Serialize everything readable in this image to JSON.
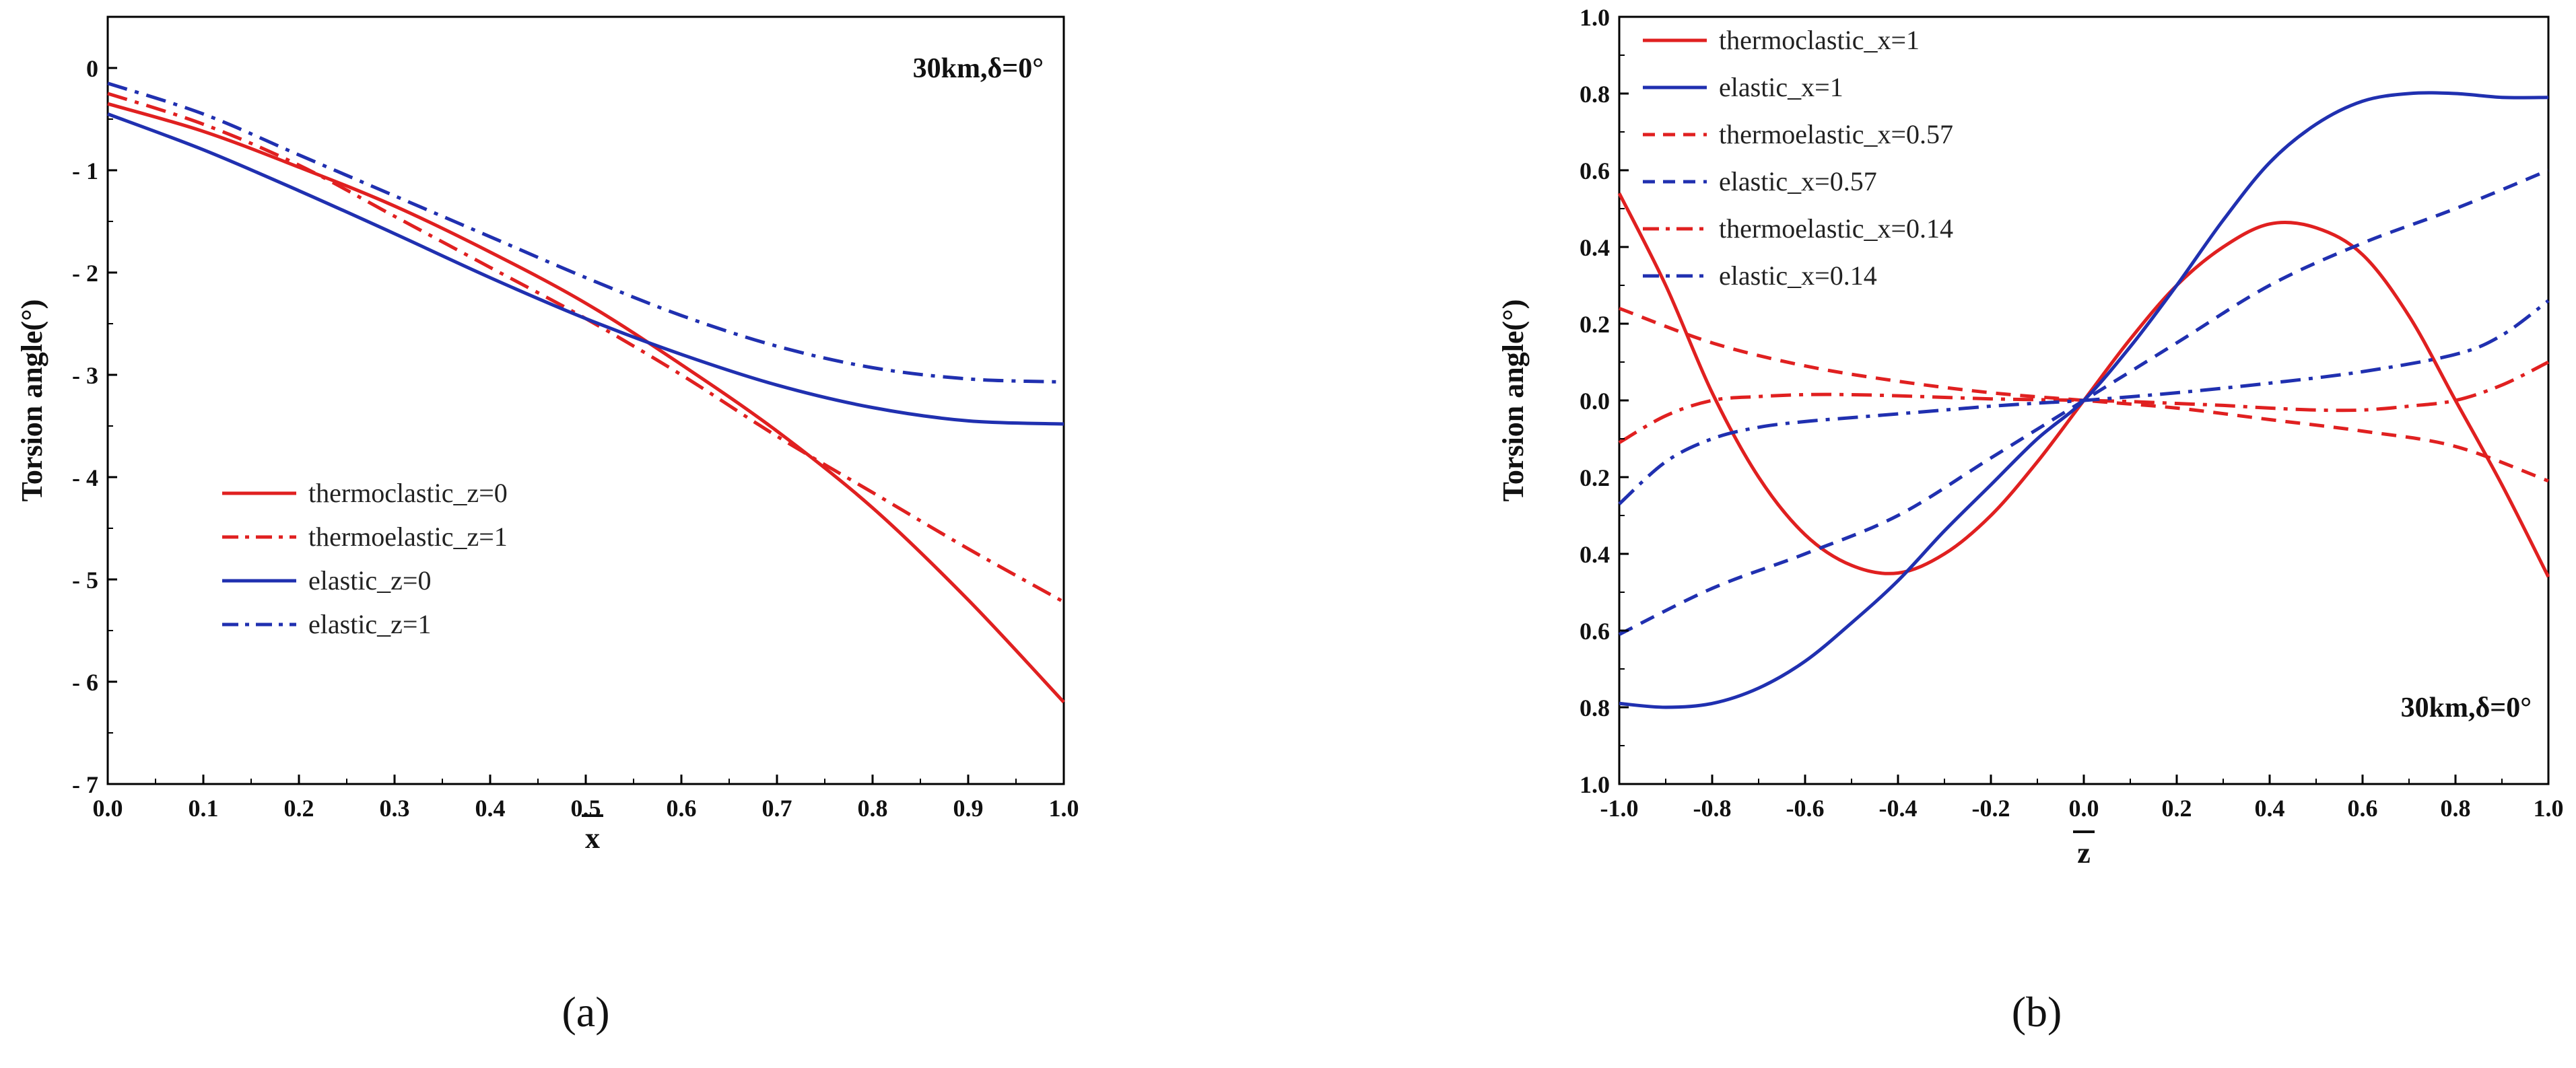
{
  "chart_data": [
    {
      "type": "line",
      "panel_label": "(a)",
      "xlabel": "x",
      "ylabel": "Torsion angle(°)",
      "annotation": "30km,δ=0°",
      "xlim": [
        0,
        1
      ],
      "ylim": [
        -7,
        0.5
      ],
      "xticks": [
        "0.0",
        "0.1",
        "0.2",
        "0.3",
        "0.4",
        "0.5",
        "0.6",
        "0.7",
        "0.8",
        "0.9",
        "1.0"
      ],
      "yticks": [
        "0",
        "- 1",
        "- 2",
        "- 3",
        "- 4",
        "- 5",
        "- 6",
        "- 7"
      ],
      "ytick_values": [
        0,
        -1,
        -2,
        -3,
        -4,
        -5,
        -6,
        -7
      ],
      "xtick_values": [
        0,
        0.1,
        0.2,
        0.3,
        0.4,
        0.5,
        0.6,
        0.7,
        0.8,
        0.9,
        1.0
      ],
      "legend_position": "center-left",
      "series": [
        {
          "name": "thermoclastic_z=0",
          "color": "#e02020",
          "dash": "solid",
          "x": [
            0,
            0.1,
            0.2,
            0.3,
            0.4,
            0.5,
            0.6,
            0.7,
            0.8,
            0.9,
            1.0
          ],
          "y": [
            -0.35,
            -0.62,
            -0.97,
            -1.35,
            -1.8,
            -2.3,
            -2.9,
            -3.55,
            -4.3,
            -5.2,
            -6.2
          ]
        },
        {
          "name": "thermoelastic_z=1",
          "color": "#e02020",
          "dash": "dashdot",
          "x": [
            0,
            0.1,
            0.2,
            0.3,
            0.4,
            0.5,
            0.6,
            0.7,
            0.8,
            0.9,
            1.0
          ],
          "y": [
            -0.25,
            -0.55,
            -0.95,
            -1.45,
            -1.95,
            -2.45,
            -3.0,
            -3.6,
            -4.15,
            -4.7,
            -5.22
          ]
        },
        {
          "name": "elastic_z=0",
          "color": "#2030b0",
          "dash": "solid",
          "x": [
            0,
            0.1,
            0.2,
            0.3,
            0.4,
            0.5,
            0.6,
            0.7,
            0.8,
            0.9,
            1.0
          ],
          "y": [
            -0.45,
            -0.8,
            -1.2,
            -1.62,
            -2.05,
            -2.45,
            -2.8,
            -3.1,
            -3.32,
            -3.45,
            -3.48
          ]
        },
        {
          "name": "elastic_z=1",
          "color": "#2030b0",
          "dash": "dashdot",
          "x": [
            0,
            0.1,
            0.2,
            0.3,
            0.4,
            0.5,
            0.6,
            0.7,
            0.8,
            0.9,
            1.0
          ],
          "y": [
            -0.15,
            -0.45,
            -0.85,
            -1.25,
            -1.65,
            -2.05,
            -2.42,
            -2.72,
            -2.93,
            -3.04,
            -3.07
          ]
        }
      ]
    },
    {
      "type": "line",
      "panel_label": "(b)",
      "xlabel": "z",
      "ylabel": "Torsion angle(°)",
      "annotation": "30km,δ=0°",
      "xlim": [
        -1,
        1
      ],
      "ylim": [
        -1,
        1
      ],
      "xticks": [
        "-1.0",
        "-0.8",
        "-0.6",
        "-0.4",
        "-0.2",
        "0.0",
        "0.2",
        "0.4",
        "0.6",
        "0.8",
        "1.0"
      ],
      "xtick_values": [
        -1,
        -0.8,
        -0.6,
        -0.4,
        -0.2,
        0,
        0.2,
        0.4,
        0.6,
        0.8,
        1
      ],
      "yticks": [
        "1.0",
        "0.8",
        "0.6",
        "0.4",
        "0.2",
        "0.0",
        "0.2",
        "0.4",
        "0.6",
        "0.8",
        "1.0"
      ],
      "ytick_values": [
        1,
        0.8,
        0.6,
        0.4,
        0.2,
        0,
        -0.2,
        -0.4,
        -0.6,
        -0.8,
        -1
      ],
      "legend_position": "top-left",
      "series": [
        {
          "name": "thermoclastic_x=1",
          "color": "#e02020",
          "dash": "solid",
          "x": [
            -1,
            -0.9,
            -0.8,
            -0.7,
            -0.6,
            -0.5,
            -0.4,
            -0.3,
            -0.2,
            -0.1,
            0,
            0.1,
            0.2,
            0.3,
            0.4,
            0.5,
            0.6,
            0.7,
            0.8,
            0.9,
            1
          ],
          "y": [
            0.54,
            0.3,
            0.02,
            -0.2,
            -0.35,
            -0.43,
            -0.45,
            -0.4,
            -0.3,
            -0.16,
            0,
            0.16,
            0.3,
            0.4,
            0.46,
            0.45,
            0.38,
            0.22,
            0.0,
            -0.22,
            -0.46
          ]
        },
        {
          "name": "elastic_x=1",
          "color": "#2030b0",
          "dash": "solid",
          "x": [
            -1,
            -0.9,
            -0.8,
            -0.7,
            -0.6,
            -0.5,
            -0.4,
            -0.3,
            -0.2,
            -0.1,
            0,
            0.1,
            0.2,
            0.3,
            0.4,
            0.5,
            0.6,
            0.7,
            0.8,
            0.9,
            1
          ],
          "y": [
            -0.79,
            -0.8,
            -0.79,
            -0.75,
            -0.68,
            -0.58,
            -0.47,
            -0.34,
            -0.22,
            -0.1,
            0,
            0.14,
            0.3,
            0.47,
            0.62,
            0.72,
            0.78,
            0.8,
            0.8,
            0.79,
            0.79
          ]
        },
        {
          "name": "thermoelastic_x=0.57",
          "color": "#e02020",
          "dash": "dashed",
          "x": [
            -1,
            -0.8,
            -0.6,
            -0.4,
            -0.2,
            0,
            0.2,
            0.4,
            0.6,
            0.8,
            1
          ],
          "y": [
            0.24,
            0.15,
            0.09,
            0.05,
            0.02,
            0,
            -0.02,
            -0.05,
            -0.08,
            -0.12,
            -0.21
          ]
        },
        {
          "name": "elastic_x=0.57",
          "color": "#2030b0",
          "dash": "dashed",
          "x": [
            -1,
            -0.8,
            -0.6,
            -0.4,
            -0.2,
            0,
            0.2,
            0.4,
            0.6,
            0.8,
            1
          ],
          "y": [
            -0.61,
            -0.49,
            -0.4,
            -0.3,
            -0.15,
            0,
            0.15,
            0.3,
            0.41,
            0.5,
            0.6
          ]
        },
        {
          "name": "thermoelastic_x=0.14",
          "color": "#e02020",
          "dash": "dashdot",
          "x": [
            -1,
            -0.9,
            -0.8,
            -0.7,
            -0.6,
            -0.5,
            -0.4,
            -0.3,
            -0.2,
            -0.1,
            0,
            0.1,
            0.2,
            0.3,
            0.4,
            0.5,
            0.6,
            0.7,
            0.8,
            0.9,
            1
          ],
          "y": [
            -0.11,
            -0.04,
            0.0,
            0.01,
            0.015,
            0.015,
            0.012,
            0.008,
            0.004,
            0.002,
            0,
            -0.003,
            -0.008,
            -0.013,
            -0.02,
            -0.025,
            -0.025,
            -0.015,
            0.0,
            0.04,
            0.1
          ]
        },
        {
          "name": "elastic_x=0.14",
          "color": "#2030b0",
          "dash": "dashdot",
          "x": [
            -1,
            -0.9,
            -0.8,
            -0.7,
            -0.6,
            -0.5,
            -0.4,
            -0.3,
            -0.2,
            -0.1,
            0,
            0.2,
            0.4,
            0.6,
            0.8,
            0.9,
            1
          ],
          "y": [
            -0.27,
            -0.16,
            -0.1,
            -0.07,
            -0.055,
            -0.045,
            -0.035,
            -0.025,
            -0.015,
            -0.007,
            0,
            0.02,
            0.045,
            0.075,
            0.12,
            0.17,
            0.26
          ]
        }
      ]
    }
  ]
}
